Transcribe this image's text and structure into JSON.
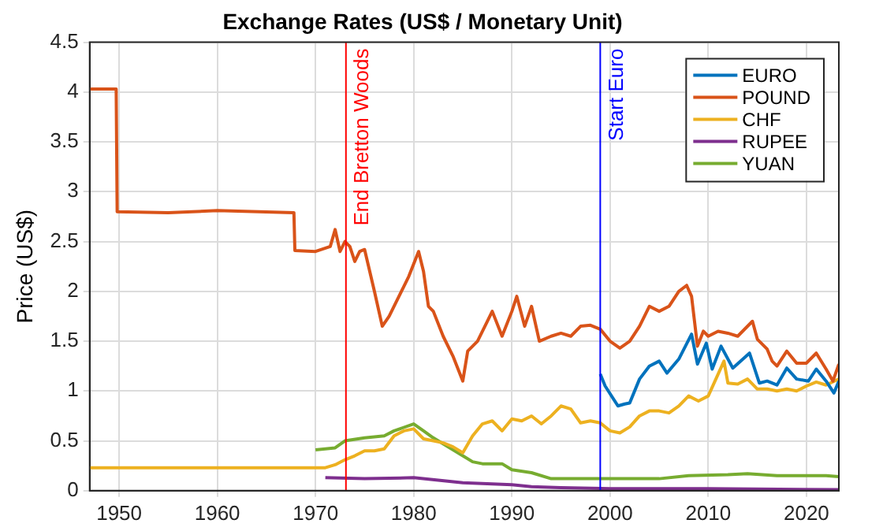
{
  "chart_data": {
    "type": "line",
    "title": "Exchange Rates (US$ / Monetary Unit)",
    "ylabel": "Price (US$)",
    "xlim": [
      1947,
      2023.3
    ],
    "xticks": [
      1950,
      1960,
      1970,
      1980,
      1990,
      2000,
      2010,
      2020
    ],
    "ylim": [
      0,
      4.5
    ],
    "yticks": [
      0,
      0.5,
      1,
      1.5,
      2,
      2.5,
      3,
      3.5,
      4,
      4.5
    ],
    "grid": true,
    "legend": "top right",
    "marker": "none",
    "line_style": "solid",
    "ref_lines": [
      {
        "axis": "x",
        "value": 1973.1,
        "label": "End Bretton Woods",
        "color": "#ff0000"
      },
      {
        "axis": "x",
        "value": 1999,
        "label": "Start Euro",
        "color": "#0000ff"
      }
    ],
    "series": [
      {
        "name": "EURO",
        "color": "#0072bd",
        "x": [
          1999,
          1999.5,
          2000.8,
          2001.5,
          2002,
          2003,
          2004,
          2005,
          2005.8,
          2007,
          2008.3,
          2008.9,
          2009.8,
          2010.4,
          2011.3,
          2012.5,
          2014.2,
          2015.2,
          2016,
          2017,
          2018,
          2019,
          2020.2,
          2021,
          2022,
          2022.8,
          2023.3
        ],
        "values": [
          1.17,
          1.05,
          0.85,
          0.87,
          0.88,
          1.12,
          1.25,
          1.3,
          1.18,
          1.32,
          1.57,
          1.27,
          1.48,
          1.22,
          1.45,
          1.23,
          1.38,
          1.08,
          1.1,
          1.06,
          1.23,
          1.12,
          1.1,
          1.22,
          1.1,
          0.98,
          1.1
        ]
      },
      {
        "name": "POUND",
        "color": "#d95319",
        "x": [
          1947,
          1949.7,
          1949.8,
          1955,
          1960,
          1967.8,
          1967.9,
          1970,
          1971.5,
          1972,
          1972.5,
          1973,
          1973.5,
          1974,
          1974.5,
          1975,
          1976,
          1976.8,
          1977.5,
          1978.5,
          1979.5,
          1980.5,
          1981,
          1981.5,
          1982,
          1983,
          1984,
          1985,
          1985.5,
          1986.5,
          1987.5,
          1988,
          1989,
          1990,
          1990.5,
          1991.3,
          1992,
          1992.8,
          1994,
          1995,
          1996,
          1997,
          1998,
          1999,
          2000,
          2001,
          2002,
          2003,
          2004,
          2005,
          2006,
          2007,
          2007.8,
          2008.3,
          2008.9,
          2009.5,
          2010,
          2011,
          2012,
          2013,
          2014.5,
          2015,
          2016,
          2016.5,
          2017,
          2018,
          2019,
          2020,
          2021,
          2022,
          2022.7,
          2023.3
        ],
        "values": [
          4.03,
          4.03,
          2.8,
          2.79,
          2.81,
          2.79,
          2.41,
          2.4,
          2.45,
          2.62,
          2.4,
          2.5,
          2.45,
          2.3,
          2.4,
          2.42,
          2.0,
          1.65,
          1.75,
          1.95,
          2.15,
          2.4,
          2.2,
          1.85,
          1.8,
          1.55,
          1.35,
          1.1,
          1.4,
          1.5,
          1.7,
          1.8,
          1.55,
          1.8,
          1.95,
          1.65,
          1.85,
          1.5,
          1.55,
          1.58,
          1.55,
          1.65,
          1.66,
          1.62,
          1.5,
          1.43,
          1.5,
          1.65,
          1.85,
          1.8,
          1.85,
          2.0,
          2.06,
          1.95,
          1.45,
          1.6,
          1.55,
          1.6,
          1.58,
          1.55,
          1.7,
          1.52,
          1.42,
          1.3,
          1.25,
          1.4,
          1.28,
          1.28,
          1.38,
          1.22,
          1.1,
          1.27
        ]
      },
      {
        "name": "CHF",
        "color": "#edb120",
        "x": [
          1947,
          1971,
          1972,
          1973,
          1974,
          1975,
          1976,
          1977,
          1978,
          1979,
          1980,
          1981,
          1982,
          1983,
          1984,
          1985,
          1986,
          1987,
          1988,
          1989,
          1990,
          1991,
          1992,
          1993,
          1994,
          1995,
          1996,
          1997,
          1998,
          1999,
          2000,
          2001,
          2002,
          2003,
          2004,
          2005,
          2006,
          2007,
          2008,
          2009,
          2010,
          2011.6,
          2012,
          2013,
          2014,
          2015,
          2016,
          2017,
          2018,
          2019,
          2020,
          2021,
          2022,
          2023.3
        ],
        "values": [
          0.23,
          0.23,
          0.26,
          0.31,
          0.35,
          0.4,
          0.4,
          0.42,
          0.55,
          0.6,
          0.62,
          0.52,
          0.5,
          0.48,
          0.44,
          0.38,
          0.55,
          0.67,
          0.7,
          0.6,
          0.72,
          0.7,
          0.75,
          0.67,
          0.75,
          0.85,
          0.82,
          0.68,
          0.7,
          0.68,
          0.6,
          0.58,
          0.64,
          0.75,
          0.8,
          0.8,
          0.78,
          0.85,
          0.95,
          0.9,
          0.95,
          1.3,
          1.08,
          1.07,
          1.12,
          1.02,
          1.02,
          1.0,
          1.02,
          1.0,
          1.05,
          1.09,
          1.06,
          1.12
        ]
      },
      {
        "name": "RUPEE",
        "color": "#7e2f8e",
        "x": [
          1971,
          1975,
          1980,
          1985,
          1990,
          1992,
          1995,
          2000,
          2010,
          2023.3
        ],
        "values": [
          0.13,
          0.12,
          0.13,
          0.08,
          0.06,
          0.04,
          0.03,
          0.02,
          0.02,
          0.01
        ]
      },
      {
        "name": "YUAN",
        "color": "#77ac30",
        "x": [
          1970,
          1972,
          1973,
          1975,
          1977,
          1978,
          1980,
          1981,
          1982,
          1985,
          1986,
          1987,
          1989,
          1990,
          1992,
          1994,
          2005,
          2008,
          2012,
          2014,
          2017,
          2020,
          2022,
          2023.3
        ],
        "values": [
          0.41,
          0.43,
          0.5,
          0.53,
          0.55,
          0.6,
          0.67,
          0.6,
          0.53,
          0.35,
          0.29,
          0.27,
          0.27,
          0.21,
          0.18,
          0.12,
          0.12,
          0.15,
          0.16,
          0.17,
          0.15,
          0.15,
          0.15,
          0.14
        ]
      }
    ]
  }
}
